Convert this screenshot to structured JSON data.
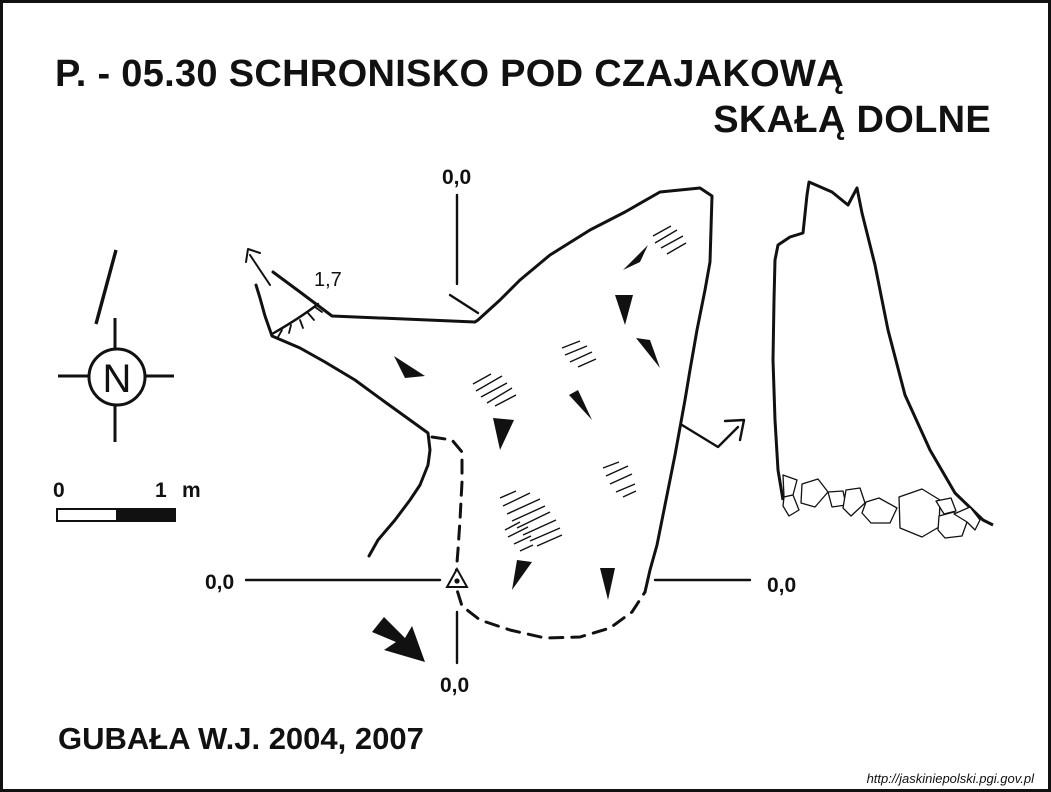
{
  "title": {
    "line1": "P. - 05.30  SCHRONISKO POD CZAJAKOWĄ",
    "line2": "SKAŁĄ DOLNE"
  },
  "author": "GUBAŁA W.J. 2004, 2007",
  "source_url": "http://jaskiniepolski.pgi.gov.pl",
  "map": {
    "depth_top": "0,0",
    "depth_left": "0,0",
    "depth_right": "0,0",
    "depth_bottom": "0,0",
    "ledge_height": "1,7"
  },
  "north_arrow": {
    "letter": "N"
  },
  "scale_bar": {
    "zero": "0",
    "one": "1",
    "unit": "m"
  },
  "colors": {
    "ink": "#111111",
    "paper": "#ffffff"
  }
}
